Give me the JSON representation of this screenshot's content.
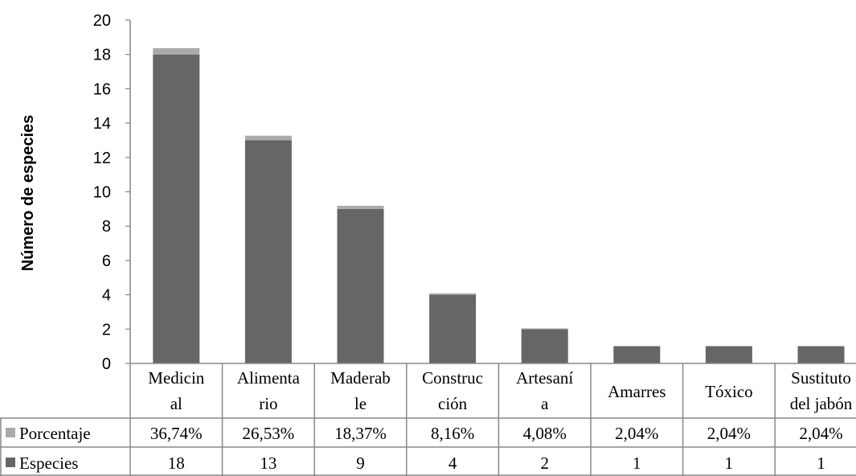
{
  "chart_data": {
    "type": "bar",
    "stacked": true,
    "ylabel": "Número de especies",
    "ylim": [
      0,
      20
    ],
    "yticks": [
      "0",
      "2",
      "4",
      "6",
      "8",
      "10",
      "12",
      "14",
      "16",
      "18",
      "20"
    ],
    "categories": [
      [
        "Medicin",
        "al"
      ],
      [
        "Alimenta",
        "rio"
      ],
      [
        "Maderab",
        "le"
      ],
      [
        "Construc",
        "ción"
      ],
      [
        "Artesaní",
        "a"
      ],
      [
        "Amarres"
      ],
      [
        "Tóxico"
      ],
      [
        "Sustituto",
        "del jabón"
      ]
    ],
    "series": [
      {
        "name": "Especies",
        "color": "#666666",
        "values": [
          18,
          13,
          9,
          4,
          2,
          1,
          1,
          1
        ],
        "labels": [
          "18",
          "13",
          "9",
          "4",
          "2",
          "1",
          "1",
          "1"
        ]
      },
      {
        "name": "Porcentaje",
        "color": "#aaaaaa",
        "values": [
          0.3674,
          0.2653,
          0.1837,
          0.0816,
          0.0408,
          0.0204,
          0.0204,
          0.0204
        ],
        "labels": [
          "36,74%",
          "26,53%",
          "18,37%",
          "8,16%",
          "4,08%",
          "2,04%",
          "2,04%",
          "2,04%"
        ]
      }
    ],
    "grid": false,
    "legend": "data-table"
  }
}
